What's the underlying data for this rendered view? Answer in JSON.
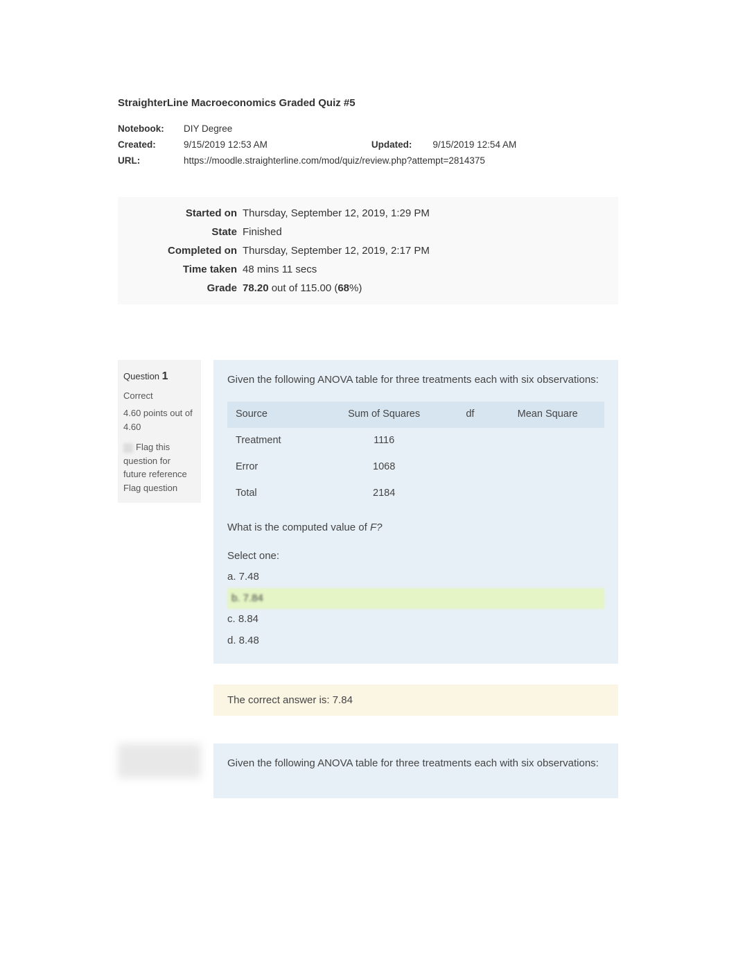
{
  "doc": {
    "title": "StraighterLine Macroeconomics Graded Quiz #5",
    "notebook_label": "Notebook:",
    "notebook": "DIY Degree",
    "created_label": "Created:",
    "created": "9/15/2019 12:53 AM",
    "updated_label": "Updated:",
    "updated": "9/15/2019 12:54 AM",
    "url_label": "URL:",
    "url": "https://moodle.straighterline.com/mod/quiz/review.php?attempt=2814375"
  },
  "attempt": {
    "rows": [
      {
        "label": "Started on",
        "value": "Thursday, September 12, 2019, 1:29 PM"
      },
      {
        "label": "State",
        "value": "Finished"
      },
      {
        "label": "Completed on",
        "value": "Thursday, September 12, 2019, 2:17 PM"
      },
      {
        "label": "Time taken",
        "value": "48 mins 11 secs"
      }
    ],
    "grade_label": "Grade",
    "grade_score": "78.20",
    "grade_mid": " out of 115.00 (",
    "grade_pct": "68",
    "grade_suffix": "%)"
  },
  "q1": {
    "sidebar": {
      "q_prefix": "Question ",
      "number": "1",
      "status": "Correct",
      "points": "4.60 points out of 4.60",
      "flag_text": "Flag this question for future reference Flag question"
    },
    "prompt": "Given the following ANOVA table for three treatments each with six observations:",
    "table": {
      "headers": [
        "Source",
        "Sum of Squares",
        "df",
        "Mean Square"
      ],
      "rows": [
        [
          "Treatment",
          "1116",
          "",
          ""
        ],
        [
          "Error",
          "1068",
          "",
          ""
        ],
        [
          "Total",
          "2184",
          "",
          ""
        ]
      ]
    },
    "subprompt_pre": "What is the computed value of ",
    "subprompt_em": "F?",
    "select_one": "Select one:",
    "options": [
      {
        "text": "a. 7.48",
        "correct": false
      },
      {
        "text": "b. 7.84",
        "correct": true
      },
      {
        "text": "c. 8.84",
        "correct": false
      },
      {
        "text": "d. 8.48",
        "correct": false
      }
    ],
    "answer": "The correct answer is: 7.84"
  },
  "q2": {
    "prompt": "Given the following ANOVA table for three treatments each with six observations:"
  },
  "colors": {
    "page_bg": "#ffffff",
    "summary_bg": "#f9f9f9",
    "sidebar_bg": "#f3f3f3",
    "content_bg": "#e8f0f7",
    "table_header_bg": "#d7e5f0",
    "correct_bg": "#e5f5c5",
    "answer_bg": "#fbf6e4",
    "text": "#333333"
  }
}
